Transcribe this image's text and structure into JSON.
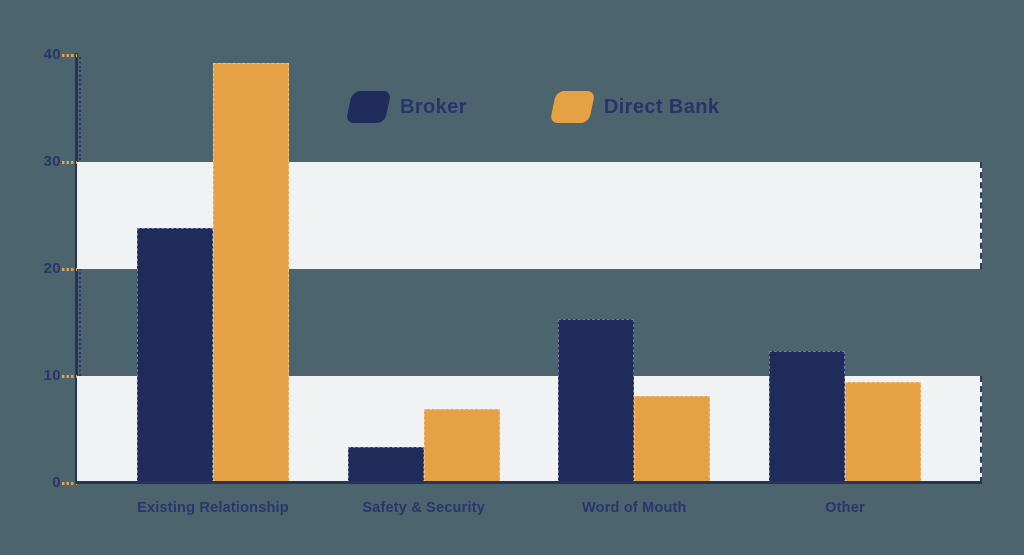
{
  "chart_data": {
    "type": "bar",
    "title": "",
    "categories": [
      "Existing Relationship",
      "Safety & Security",
      "Word of Mouth",
      "Other"
    ],
    "series": [
      {
        "name": "Broker",
        "color": "#1f2c5b",
        "values": [
          23.8,
          3.4,
          15.3,
          12.3
        ]
      },
      {
        "name": "Direct Bank",
        "color": "#e5a143",
        "values": [
          39.3,
          6.9,
          8.1,
          9.4
        ]
      }
    ],
    "xlabel": "",
    "ylabel": "",
    "ylim": [
      0,
      40
    ],
    "yticks": [
      "0",
      "10",
      "20",
      "30",
      "40"
    ],
    "grid": "alternating horizontal bands",
    "band_ranges": [
      [
        0,
        10
      ],
      [
        20,
        30
      ]
    ],
    "legend_position": "top-center"
  },
  "colors": {
    "background": "#4c646d",
    "band": "#f1f2f4",
    "axis": "#27335a",
    "tick": "#dfa24e",
    "text": "#28366c"
  }
}
